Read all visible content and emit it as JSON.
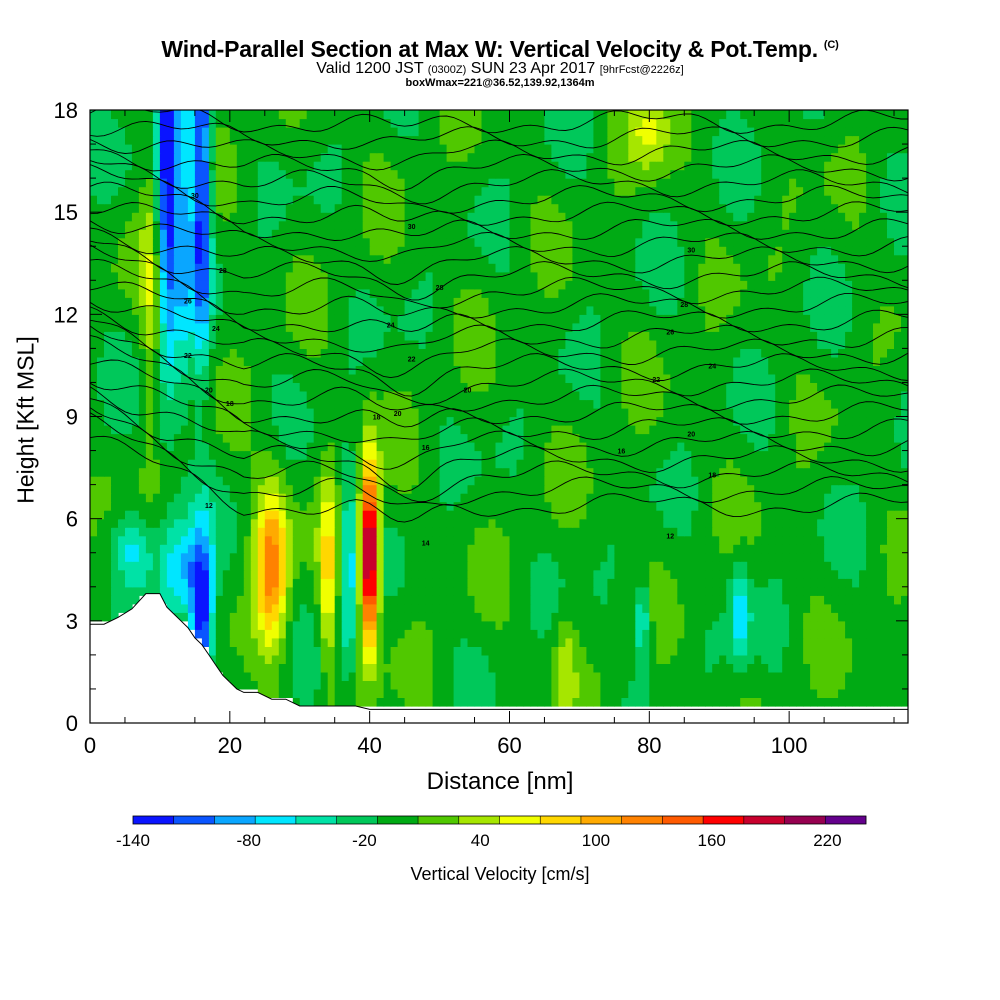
{
  "title": {
    "main": "Wind-Parallel Section at Max W: Vertical Velocity & Pot.Temp.",
    "copyright": "(C)",
    "valid_prefix": "Valid 1200 JST",
    "valid_zulu": "(0300Z)",
    "valid_date": "SUN 23 Apr 2017",
    "forecast": "[9hrFcst@2226z]",
    "box": "boxWmax=221@36.52,139.92,1364m"
  },
  "chart_data": {
    "type": "heatmap",
    "xlabel": "Distance [nm]",
    "ylabel": "Height [Kft MSL]",
    "xlim": [
      0,
      117
    ],
    "ylim": [
      0,
      18
    ],
    "x_ticks": [
      0,
      20,
      40,
      60,
      80,
      100
    ],
    "y_ticks": [
      0,
      3,
      6,
      9,
      12,
      15,
      18
    ],
    "colorbar": {
      "label": "Vertical Velocity [cm/s]",
      "min": -140,
      "max": 240,
      "step": 20,
      "tick_values": [
        -140,
        -80,
        -20,
        40,
        100,
        160,
        220
      ],
      "tick_labels": [
        "-140",
        "-80",
        "-20",
        "40",
        "100",
        "160",
        "220"
      ],
      "colors": [
        "#0a14ff",
        "#0a55ff",
        "#0aa6ff",
        "#00e6ff",
        "#00e2a6",
        "#00c85a",
        "#00aa14",
        "#50c800",
        "#a6e600",
        "#f0ff00",
        "#ffd700",
        "#ffaa00",
        "#ff8200",
        "#ff5a00",
        "#ff0000",
        "#c8002d",
        "#960050",
        "#64008c"
      ]
    },
    "background_value": -10,
    "terrain_profile": [
      [
        0,
        2.9
      ],
      [
        2,
        2.9
      ],
      [
        4,
        3.1
      ],
      [
        6,
        3.35
      ],
      [
        8,
        3.8
      ],
      [
        10,
        3.8
      ],
      [
        11,
        3.4
      ],
      [
        12,
        3.2
      ],
      [
        13,
        3.0
      ],
      [
        14,
        2.8
      ],
      [
        15,
        2.5
      ],
      [
        16,
        2.3
      ],
      [
        17,
        2.0
      ],
      [
        18,
        1.7
      ],
      [
        19,
        1.4
      ],
      [
        20,
        1.2
      ],
      [
        21,
        1.0
      ],
      [
        22,
        0.9
      ],
      [
        24,
        0.9
      ],
      [
        26,
        0.7
      ],
      [
        28,
        0.7
      ],
      [
        30,
        0.5
      ],
      [
        38,
        0.5
      ],
      [
        40,
        0.4
      ],
      [
        45,
        0.4
      ],
      [
        117,
        0.4
      ]
    ],
    "features": [
      {
        "x": 11,
        "y": 16,
        "wx": 1.6,
        "wy": 6,
        "value": -140
      },
      {
        "x": 16,
        "y": 16,
        "wx": 1.3,
        "wy": 5,
        "value": -140
      },
      {
        "x": 13.5,
        "y": 15,
        "wx": 1.3,
        "wy": 5,
        "value": -70
      },
      {
        "x": 9,
        "y": 13,
        "wx": 1.5,
        "wy": 4,
        "value": 40
      },
      {
        "x": 16,
        "y": 3.2,
        "wx": 1.6,
        "wy": 2.2,
        "value": -140
      },
      {
        "x": 13,
        "y": 4.5,
        "wx": 3,
        "wy": 1.5,
        "value": -80
      },
      {
        "x": 6,
        "y": 5.2,
        "wx": 3,
        "wy": 1,
        "value": -60
      },
      {
        "x": 26,
        "y": 4.6,
        "wx": 2.3,
        "wy": 2.4,
        "value": 110
      },
      {
        "x": 34,
        "y": 4.4,
        "wx": 1.2,
        "wy": 3,
        "value": 60
      },
      {
        "x": 37,
        "y": 4.4,
        "wx": 1.1,
        "wy": 2.8,
        "value": -80
      },
      {
        "x": 40,
        "y": 5,
        "wx": 1.3,
        "wy": 2.6,
        "value": 221
      },
      {
        "x": 80,
        "y": 17.5,
        "wx": 3,
        "wy": 1.2,
        "value": 40
      },
      {
        "x": 93,
        "y": 3.3,
        "wx": 1.4,
        "wy": 1.5,
        "value": -70
      },
      {
        "x": 79,
        "y": 3,
        "wx": 1.2,
        "wy": 1.2,
        "value": -70
      },
      {
        "x": 68,
        "y": 1.8,
        "wx": 1.6,
        "wy": 1.4,
        "value": 30
      }
    ],
    "isentrope_labels": [
      {
        "x": 15,
        "y": 15.5,
        "text": "30"
      },
      {
        "x": 46,
        "y": 14.6,
        "text": "30"
      },
      {
        "x": 19,
        "y": 13.3,
        "text": "28"
      },
      {
        "x": 50,
        "y": 12.8,
        "text": "28"
      },
      {
        "x": 86,
        "y": 13.9,
        "text": "30"
      },
      {
        "x": 14,
        "y": 12.4,
        "text": "26"
      },
      {
        "x": 85,
        "y": 12.3,
        "text": "28"
      },
      {
        "x": 43,
        "y": 11.7,
        "text": "24"
      },
      {
        "x": 83,
        "y": 11.5,
        "text": "26"
      },
      {
        "x": 18,
        "y": 11.6,
        "text": "24"
      },
      {
        "x": 46,
        "y": 10.7,
        "text": "22"
      },
      {
        "x": 14,
        "y": 10.8,
        "text": "22"
      },
      {
        "x": 89,
        "y": 10.5,
        "text": "24"
      },
      {
        "x": 81,
        "y": 10.1,
        "text": "22"
      },
      {
        "x": 54,
        "y": 9.8,
        "text": "20"
      },
      {
        "x": 17,
        "y": 9.8,
        "text": "20"
      },
      {
        "x": 20,
        "y": 9.4,
        "text": "18"
      },
      {
        "x": 41,
        "y": 9,
        "text": "18"
      },
      {
        "x": 44,
        "y": 9.1,
        "text": "20"
      },
      {
        "x": 48,
        "y": 8.1,
        "text": "16"
      },
      {
        "x": 86,
        "y": 8.5,
        "text": "20"
      },
      {
        "x": 76,
        "y": 8,
        "text": "16"
      },
      {
        "x": 89,
        "y": 7.3,
        "text": "18"
      },
      {
        "x": 17,
        "y": 6.4,
        "text": "12"
      },
      {
        "x": 83,
        "y": 5.5,
        "text": "12"
      },
      {
        "x": 48,
        "y": 5.3,
        "text": "14"
      }
    ]
  }
}
